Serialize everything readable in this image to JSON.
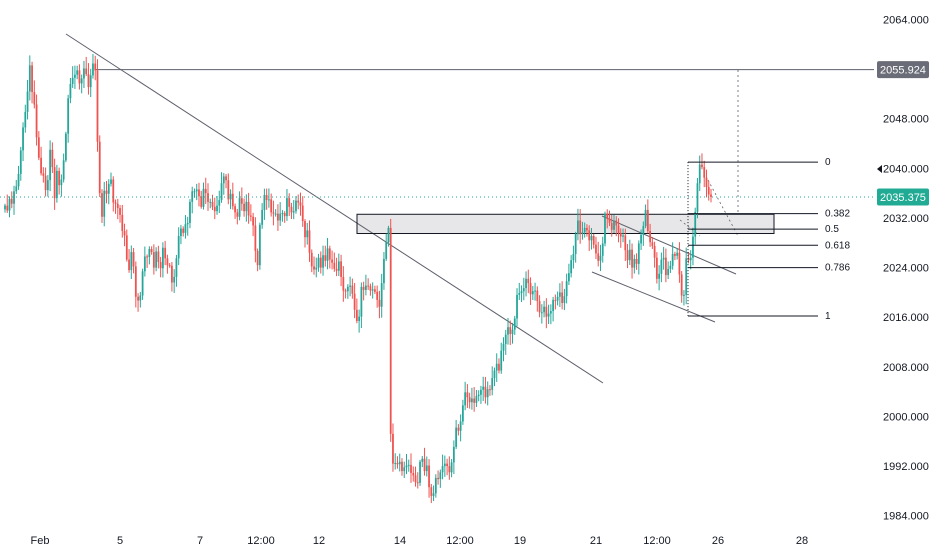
{
  "chart_data": {
    "type": "candlestick",
    "title": "",
    "ylim": [
      1983,
      2067
    ],
    "y_ticks": [
      "2064.000",
      "2056.000",
      "2048.000",
      "2040.000",
      "2032.000",
      "2024.000",
      "2016.000",
      "2008.000",
      "2000.000",
      "1992.000",
      "1984.000"
    ],
    "y_tick_values": [
      2064,
      2056,
      2048,
      2040,
      2032,
      2024,
      2016,
      2008,
      2000,
      1992,
      1984
    ],
    "x_ticks": [
      "Feb",
      "5",
      "7",
      "12:00",
      "12",
      "14",
      "12:00",
      "19",
      "21",
      "12:00",
      "26",
      "28"
    ],
    "last_price": "2035.375",
    "target_price": "2055.924",
    "fib_levels": [
      {
        "label": "0",
        "price": 2041.0
      },
      {
        "label": "0.382",
        "price": 2032.7
      },
      {
        "label": "0.5",
        "price": 2030.2
      },
      {
        "label": "0.618",
        "price": 2027.6
      },
      {
        "label": "0.786",
        "price": 2024.0
      },
      {
        "label": "1",
        "price": 2016.2
      }
    ],
    "resistance_zone": {
      "top": 2032.6,
      "bottom": 2029.5
    },
    "colors": {
      "up": "#26a69a",
      "down": "#ef5350",
      "line": "#5d606b",
      "price_tag": "#22ab94",
      "target_tag": "#6a6d78"
    },
    "grid": false,
    "candles_close": [
      2034.0,
      2033.2,
      2035.1,
      2034.3,
      2036.3,
      2037.1,
      2039.1,
      2042.9,
      2046.6,
      2049.1,
      2052.4,
      2056.6,
      2052.3,
      2050.3,
      2045.0,
      2041.7,
      2039.2,
      2038.8,
      2036.5,
      2038.1,
      2043.0,
      2040.2,
      2035.2,
      2039.6,
      2037.3,
      2038.2,
      2041.3,
      2045.6,
      2051.3,
      2053.6,
      2054.6,
      2055.1,
      2055.8,
      2053.7,
      2054.5,
      2056.1,
      2055.2,
      2053.1,
      2055.0,
      2056.9,
      2055.8,
      2044.3,
      2036.0,
      2032.2,
      2036.4,
      2035.9,
      2037.5,
      2038.2,
      2034.5,
      2034.3,
      2033.6,
      2032.5,
      2029.9,
      2029.2,
      2025.3,
      2023.6,
      2026.5,
      2024.2,
      2019.3,
      2018.7,
      2019.5,
      2023.4,
      2025.8,
      2025.7,
      2027.0,
      2026.5,
      2024.0,
      2026.6,
      2024.9,
      2023.9,
      2027.2,
      2025.5,
      2024.4,
      2024.3,
      2021.6,
      2022.5,
      2025.5,
      2029.1,
      2030.3,
      2029.6,
      2031.0,
      2031.2,
      2034.6,
      2036.3,
      2036.3,
      2036.6,
      2035.5,
      2033.8,
      2036.7,
      2036.0,
      2034.6,
      2034.6,
      2033.8,
      2033.1,
      2034.0,
      2034.9,
      2037.6,
      2038.7,
      2038.1,
      2035.0,
      2035.9,
      2033.9,
      2032.9,
      2032.2,
      2035.2,
      2034.3,
      2033.1,
      2034.6,
      2032.4,
      2032.2,
      2030.8,
      2026.7,
      2024.4,
      2030.9,
      2033.3,
      2035.7,
      2034.9,
      2035.0,
      2032.9,
      2032.7,
      2032.7,
      2031.6,
      2032.7,
      2032.8,
      2032.3,
      2035.2,
      2033.8,
      2032.9,
      2033.1,
      2034.8,
      2034.5,
      2034.0,
      2031.5,
      2028.9,
      2030.0,
      2026.4,
      2024.2,
      2023.7,
      2024.0,
      2025.6,
      2024.0,
      2026.0,
      2025.1,
      2027.1,
      2025.3,
      2024.8,
      2023.8,
      2023.5,
      2025.0,
      2022.5,
      2020.3,
      2020.2,
      2020.9,
      2021.1,
      2019.8,
      2017.2,
      2015.4,
      2016.1,
      2020.9,
      2020.4,
      2021.1,
      2021.0,
      2020.3,
      2020.5,
      2020.1,
      2018.8,
      2017.7,
      2021.5,
      2025.4,
      2028.1,
      2030.4,
      1997.2,
      1992.4,
      1992.5,
      1992.3,
      1992.7,
      1991.2,
      1991.8,
      1992.1,
      1992.2,
      1990.9,
      1990.5,
      1989.4,
      1989.3,
      1992.7,
      1993.2,
      1991.2,
      1992.1,
      1988.6,
      1987.2,
      1987.6,
      1990.1,
      1989.9,
      1991.0,
      1992.0,
      1992.4,
      1992.0,
      1991.0,
      1992.6,
      1995.1,
      1998.2,
      1997.7,
      1999.2,
      2001.8,
      2003.9,
      2003.1,
      2002.3,
      2002.9,
      2002.2,
      2003.3,
      2003.5,
      2004.3,
      2004.8,
      2003.1,
      2004.4,
      2004.3,
      2006.2,
      2007.4,
      2008.5,
      2007.4,
      2010.6,
      2011.7,
      2013.2,
      2014.4,
      2013.3,
      2014.0,
      2015.8,
      2019.6,
      2019.9,
      2020.2,
      2020.7,
      2022.2,
      2021.5,
      2019.7,
      2020.2,
      2020.3,
      2018.6,
      2016.8,
      2016.8,
      2017.7,
      2016.1,
      2016.6,
      2017.0,
      2018.8,
      2018.7,
      2019.3,
      2020.0,
      2018.3,
      2019.4,
      2021.8,
      2023.1,
      2025.2,
      2026.2,
      2029.4,
      2031.6,
      2029.4,
      2029.7,
      2030.4,
      2030.0,
      2028.4,
      2029.1,
      2027.7,
      2026.3,
      2025.1,
      2025.9,
      2027.9,
      2032.7,
      2031.9,
      2031.2,
      2030.1,
      2031.6,
      2030.8,
      2029.6,
      2029.0,
      2029.2,
      2026.8,
      2025.2,
      2026.9,
      2024.0,
      2025.4,
      2024.6,
      2027.9,
      2029.3,
      2030.7,
      2033.3,
      2029.9,
      2028.1,
      2027.5,
      2025.6,
      2022.2,
      2023.0,
      2025.3,
      2025.6,
      2022.8,
      2023.8,
      2024.3,
      2026.2,
      2025.9,
      2026.4,
      2022.9,
      2019.5,
      2019.6,
      2025.5,
      2025.2,
      2025.6,
      2029.0,
      2033.0,
      2037.6,
      2040.6,
      2040.2,
      2038.5,
      2037.0,
      2035.8,
      2035.4
    ]
  }
}
